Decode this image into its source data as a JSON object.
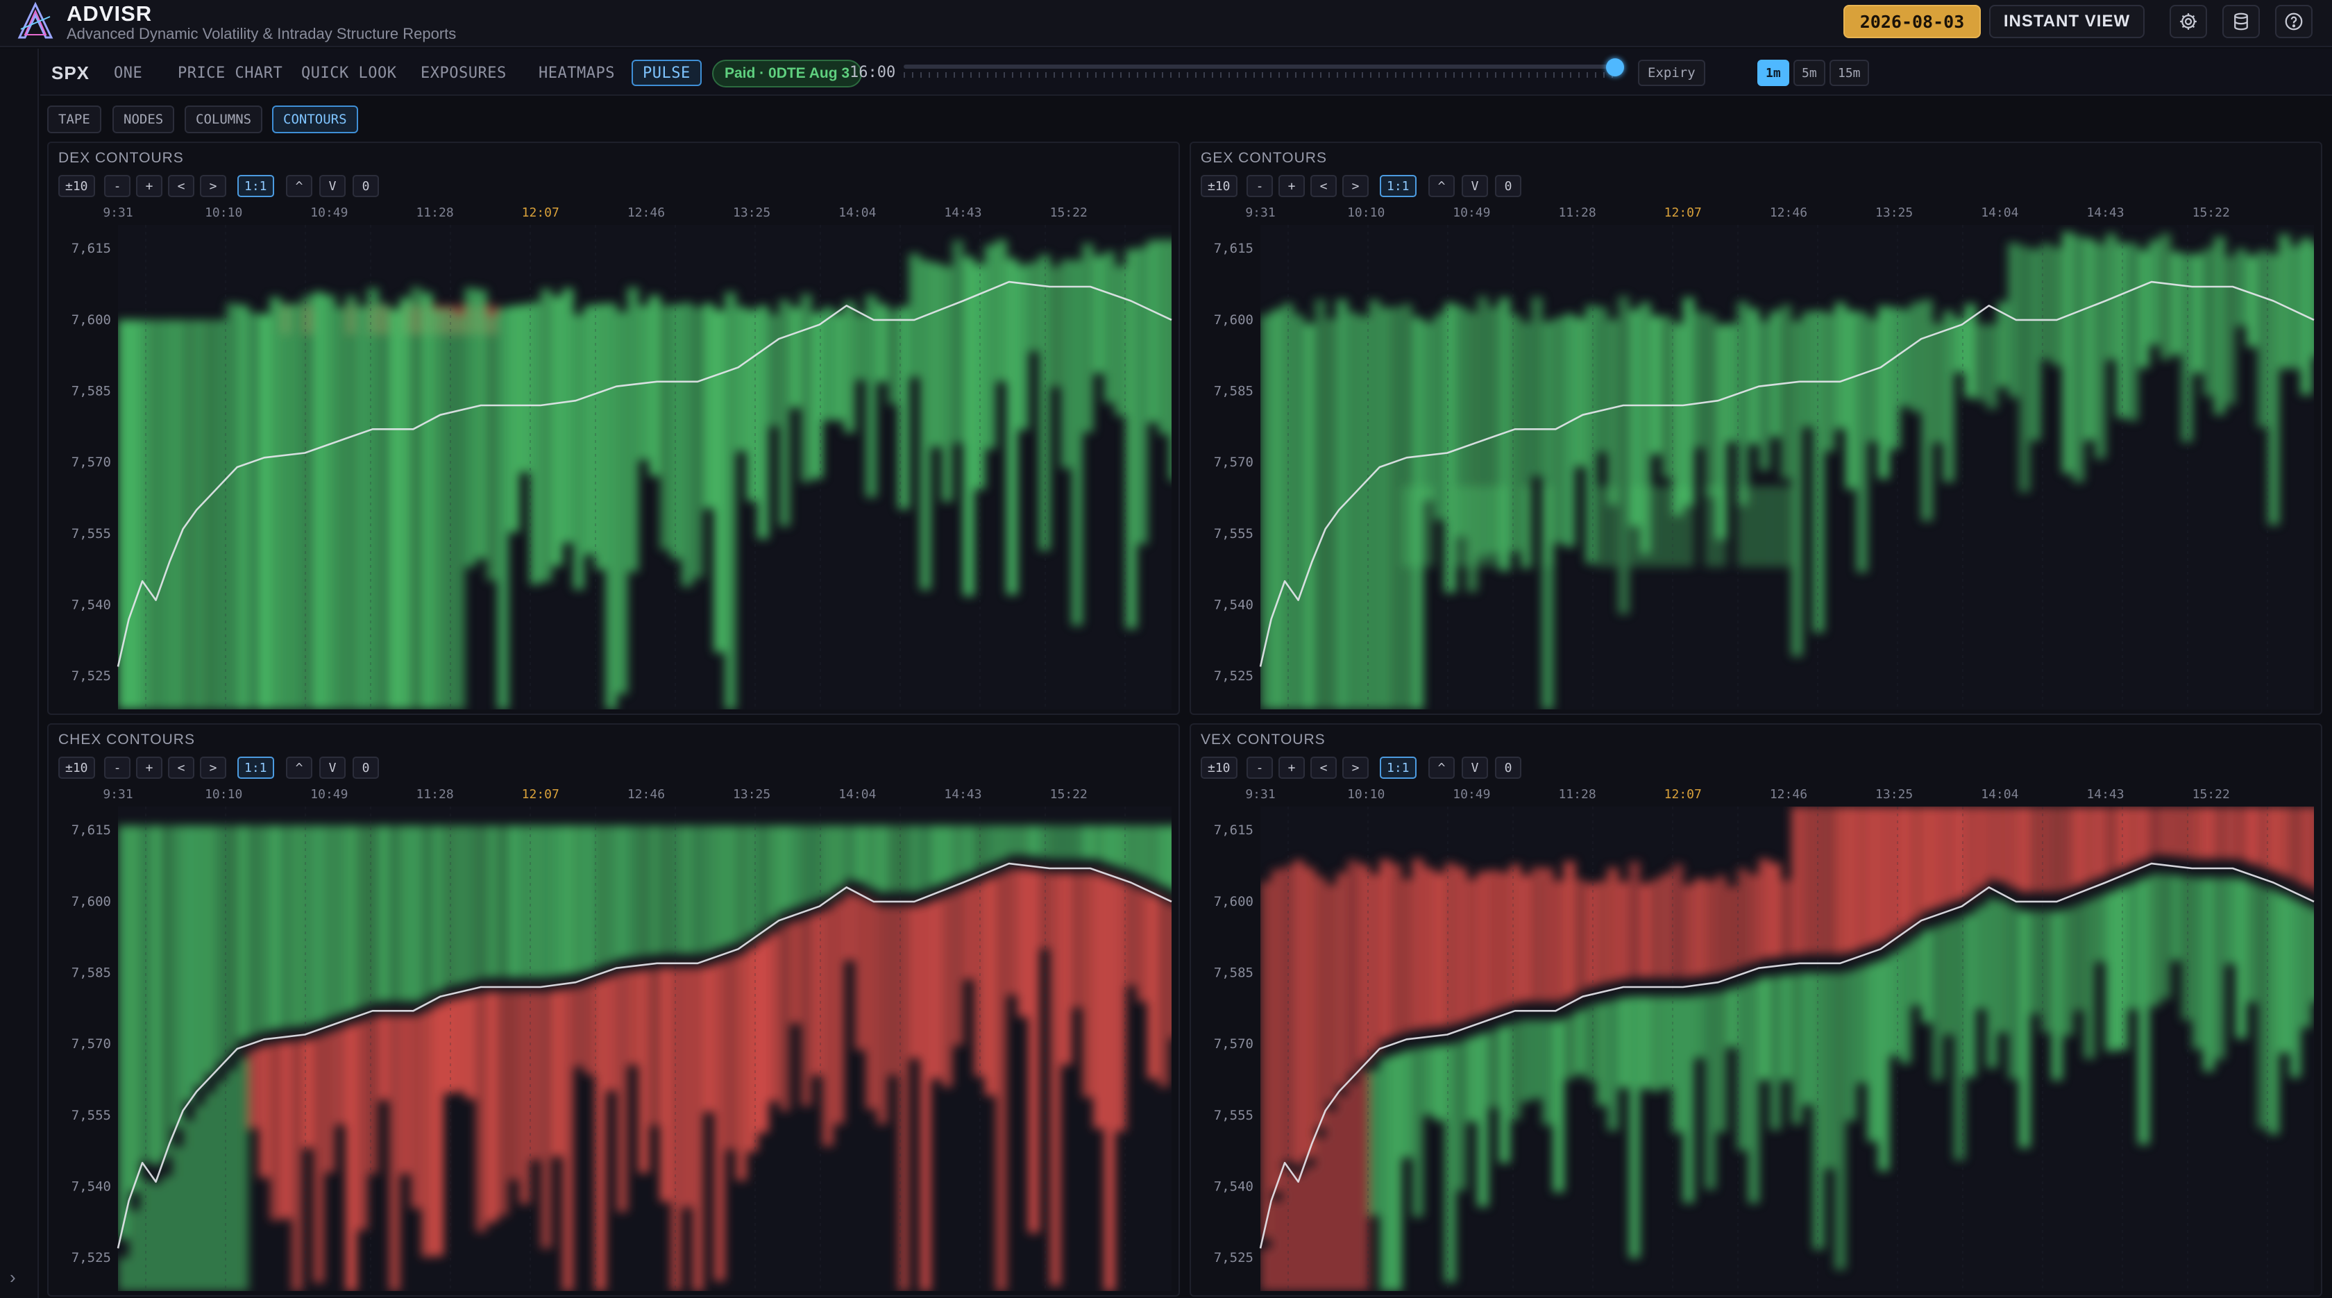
{
  "app": {
    "title": "ADVISR",
    "subtitle": "Advanced Dynamic Volatility & Intraday Structure Reports",
    "logo_text": "ADVISR"
  },
  "header": {
    "date": "2026-08-03",
    "instant_view": "INSTANT VIEW",
    "icons": [
      "gear-icon",
      "database-icon",
      "help-icon"
    ]
  },
  "nav": {
    "symbol": "SPX",
    "tabs": [
      {
        "label": "ONE",
        "active": false
      },
      {
        "label": "PRICE CHART",
        "active": false
      },
      {
        "label": "QUICK LOOK",
        "active": false
      },
      {
        "label": "EXPOSURES",
        "active": false
      },
      {
        "label": "HEATMAPS",
        "active": false
      },
      {
        "label": "PULSE",
        "active": true
      }
    ],
    "paid_badge": "Paid · 0DTE Aug 3",
    "time": "16:00",
    "slider_value": 1.0,
    "expiry": "Expiry",
    "timeframes": [
      {
        "label": "1m",
        "active": true
      },
      {
        "label": "5m",
        "active": false
      },
      {
        "label": "15m",
        "active": false
      }
    ]
  },
  "subtabs": [
    {
      "label": "TAPE",
      "active": false
    },
    {
      "label": "NODES",
      "active": false
    },
    {
      "label": "COLUMNS",
      "active": false
    },
    {
      "label": "CONTOURS",
      "active": true
    }
  ],
  "controls": [
    "±10",
    "-",
    "+",
    "<",
    ">",
    "1:1",
    "^",
    "V",
    "0"
  ],
  "colors": {
    "positive": "#4cc56a",
    "negative": "#e0504a",
    "price_line": "#e8e8ee",
    "highlight_time": "#d9a13a",
    "accent": "#4fb8ff"
  },
  "chart_data": [
    {
      "type": "heatmap",
      "title": "DEX CONTOURS",
      "x_ticks": [
        "9:31",
        "10:10",
        "10:49",
        "11:28",
        "12:07",
        "12:46",
        "13:25",
        "14:04",
        "14:43",
        "15:22"
      ],
      "highlight_tick": "12:07",
      "y_ticks": [
        "7,615",
        "7,600",
        "7,585",
        "7,570",
        "7,555",
        "7,540",
        "7,525"
      ],
      "ylim": [
        7518,
        7620
      ],
      "scheme": "dex"
    },
    {
      "type": "heatmap",
      "title": "GEX CONTOURS",
      "x_ticks": [
        "9:31",
        "10:10",
        "10:49",
        "11:28",
        "12:07",
        "12:46",
        "13:25",
        "14:04",
        "14:43",
        "15:22"
      ],
      "highlight_tick": "12:07",
      "y_ticks": [
        "7,615",
        "7,600",
        "7,585",
        "7,570",
        "7,555",
        "7,540",
        "7,525"
      ],
      "ylim": [
        7518,
        7620
      ],
      "scheme": "gex"
    },
    {
      "type": "heatmap",
      "title": "CHEX CONTOURS",
      "x_ticks": [
        "9:31",
        "10:10",
        "10:49",
        "11:28",
        "12:07",
        "12:46",
        "13:25",
        "14:04",
        "14:43",
        "15:22"
      ],
      "highlight_tick": "12:07",
      "y_ticks": [
        "7,615",
        "7,600",
        "7,585",
        "7,570",
        "7,555",
        "7,540",
        "7,525"
      ],
      "ylim": [
        7518,
        7620
      ],
      "scheme": "chex"
    },
    {
      "type": "heatmap",
      "title": "VEX CONTOURS",
      "x_ticks": [
        "9:31",
        "10:10",
        "10:49",
        "11:28",
        "12:07",
        "12:46",
        "13:25",
        "14:04",
        "14:43",
        "15:22"
      ],
      "highlight_tick": "12:07",
      "y_ticks": [
        "7,615",
        "7,600",
        "7,585",
        "7,570",
        "7,555",
        "7,540",
        "7,525"
      ],
      "ylim": [
        7518,
        7620
      ],
      "scheme": "vex"
    }
  ],
  "price_series": [
    {
      "t": "9:31",
      "p": 7527
    },
    {
      "t": "9:35",
      "p": 7537
    },
    {
      "t": "9:40",
      "p": 7545
    },
    {
      "t": "9:45",
      "p": 7541
    },
    {
      "t": "9:50",
      "p": 7549
    },
    {
      "t": "9:55",
      "p": 7556
    },
    {
      "t": "10:00",
      "p": 7560
    },
    {
      "t": "10:05",
      "p": 7563
    },
    {
      "t": "10:10",
      "p": 7566
    },
    {
      "t": "10:15",
      "p": 7569
    },
    {
      "t": "10:25",
      "p": 7571
    },
    {
      "t": "10:40",
      "p": 7572
    },
    {
      "t": "10:55",
      "p": 7575
    },
    {
      "t": "11:05",
      "p": 7577
    },
    {
      "t": "11:20",
      "p": 7577
    },
    {
      "t": "11:30",
      "p": 7580
    },
    {
      "t": "11:45",
      "p": 7582
    },
    {
      "t": "12:07",
      "p": 7582
    },
    {
      "t": "12:20",
      "p": 7583
    },
    {
      "t": "12:35",
      "p": 7586
    },
    {
      "t": "12:50",
      "p": 7587
    },
    {
      "t": "13:05",
      "p": 7587
    },
    {
      "t": "13:20",
      "p": 7590
    },
    {
      "t": "13:35",
      "p": 7596
    },
    {
      "t": "13:50",
      "p": 7599
    },
    {
      "t": "14:00",
      "p": 7603
    },
    {
      "t": "14:10",
      "p": 7600
    },
    {
      "t": "14:25",
      "p": 7600
    },
    {
      "t": "14:43",
      "p": 7604
    },
    {
      "t": "15:00",
      "p": 7608
    },
    {
      "t": "15:15",
      "p": 7607
    },
    {
      "t": "15:30",
      "p": 7607
    },
    {
      "t": "15:45",
      "p": 7604
    },
    {
      "t": "16:00",
      "p": 7600
    }
  ]
}
